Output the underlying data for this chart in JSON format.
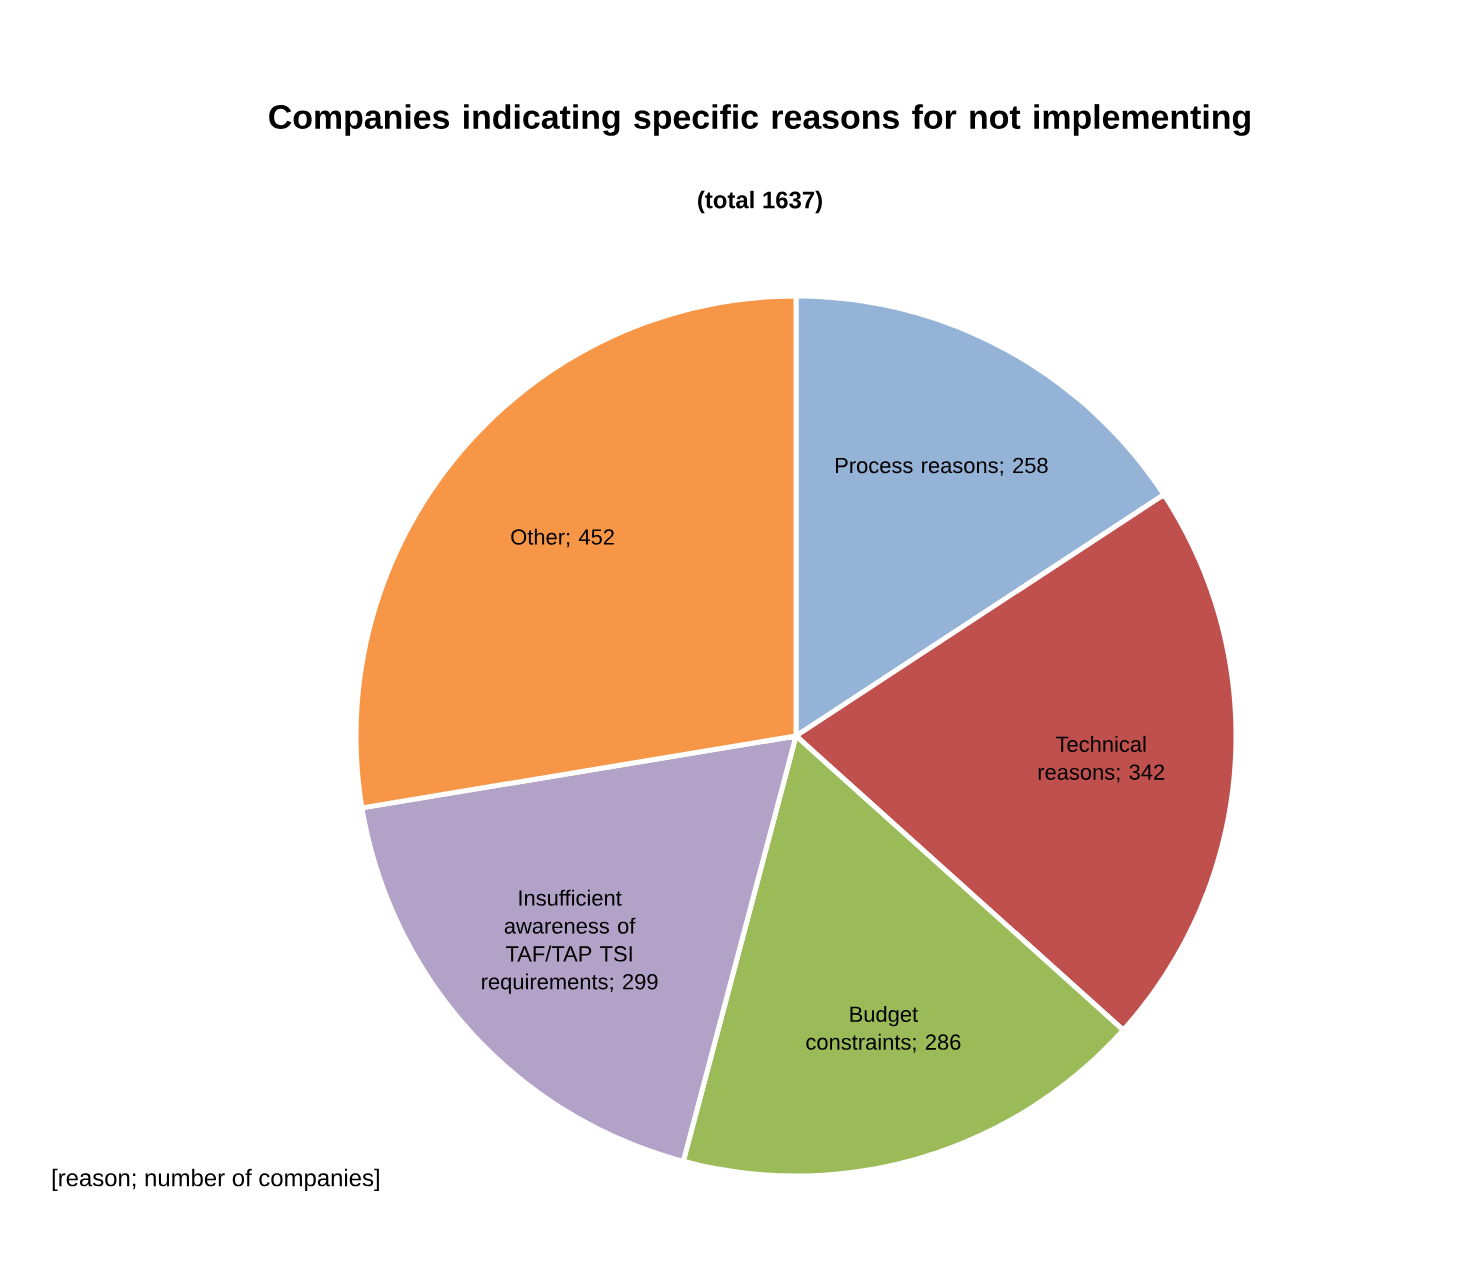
{
  "chart_data": {
    "type": "pie",
    "title": "Companies indicating specific reasons for not implementing",
    "subtitle": "(total 1637)",
    "categories": [
      "Process reasons",
      "Technical reasons",
      "Budget constraints",
      "Insufficient awareness of TAF/TAP TSI requirements",
      "Other"
    ],
    "values": [
      258,
      342,
      286,
      299,
      452
    ],
    "colors": [
      "#95b3d7",
      "#c0504d",
      "#9bbb59",
      "#b3a2c7",
      "#f79646"
    ],
    "value_labels": [
      "; 258",
      "; 342",
      "; 286",
      "; 299",
      "; 452"
    ],
    "annotations": [
      "[reason; number of companies]"
    ]
  }
}
